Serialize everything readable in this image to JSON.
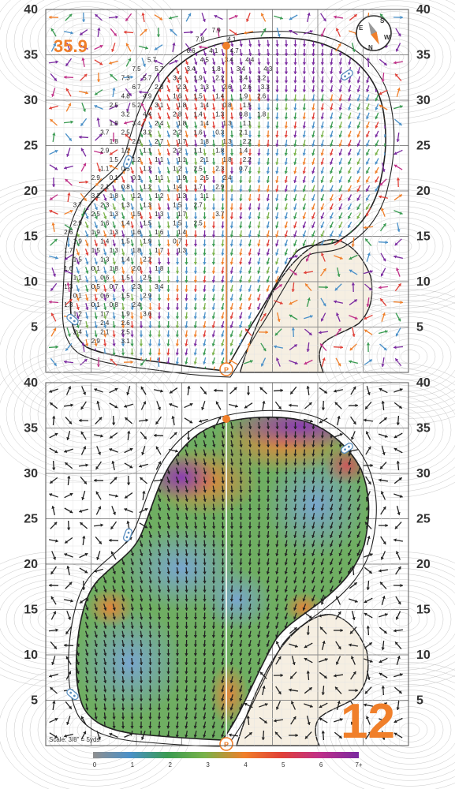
{
  "hole": {
    "number": "12",
    "pin_elevation_label": "35.9",
    "scale_label": "Scale: 3/8\" = 5yds"
  },
  "y_axis": {
    "ticks": [
      "40",
      "35",
      "30",
      "25",
      "20",
      "15",
      "10",
      "5"
    ]
  },
  "compass": {
    "letters": [
      "S",
      "E",
      "W",
      "N"
    ]
  },
  "legend": {
    "ticks": [
      "0",
      "1",
      "2",
      "3",
      "4",
      "5",
      "6",
      "7+"
    ],
    "colors": [
      "#8f8f8f",
      "#4a90c8",
      "#3a9b52",
      "#79b24a",
      "#f07f2a",
      "#e04038",
      "#c03088",
      "#7a2aa0"
    ]
  },
  "colors": {
    "accent": "#f07f2a",
    "grid_line": "#8a8a8a",
    "green_outline": "#222222",
    "sand": "#f6efe2",
    "contour": "#c8c8c8"
  },
  "slope_readings": [
    {
      "x": 18.8,
      "y": 37.5,
      "v": "7.9"
    },
    {
      "x": 17,
      "y": 36.5,
      "v": "7.8"
    },
    {
      "x": 20.5,
      "y": 36.5,
      "v": "4.1"
    },
    {
      "x": 16,
      "y": 35.2,
      "v": "6.6"
    },
    {
      "x": 18.5,
      "y": 35.2,
      "v": "4.1"
    },
    {
      "x": 20.8,
      "y": 35.2,
      "v": "4.7"
    },
    {
      "x": 11.7,
      "y": 34.2,
      "v": "5.7"
    },
    {
      "x": 17.5,
      "y": 34.2,
      "v": "4.5"
    },
    {
      "x": 20.2,
      "y": 34.2,
      "v": "3.4"
    },
    {
      "x": 22.5,
      "y": 34.2,
      "v": "4.4"
    },
    {
      "x": 10,
      "y": 33.2,
      "v": "7.5"
    },
    {
      "x": 12.5,
      "y": 33.2,
      "v": "5.7"
    },
    {
      "x": 16,
      "y": 33.2,
      "v": "3.4"
    },
    {
      "x": 18.8,
      "y": 33.2,
      "v": "1.8"
    },
    {
      "x": 21.5,
      "y": 33.2,
      "v": "3.4"
    },
    {
      "x": 24.5,
      "y": 33.2,
      "v": "4.3"
    },
    {
      "x": 8.8,
      "y": 32.2,
      "v": "7.3"
    },
    {
      "x": 11.2,
      "y": 32.2,
      "v": "5.7"
    },
    {
      "x": 14.5,
      "y": 32.2,
      "v": "3.4"
    },
    {
      "x": 16.8,
      "y": 32.2,
      "v": "1.9"
    },
    {
      "x": 19.2,
      "y": 32.2,
      "v": "2.2"
    },
    {
      "x": 21.8,
      "y": 32.2,
      "v": "3.4"
    },
    {
      "x": 23.8,
      "y": 32.2,
      "v": "3.2"
    },
    {
      "x": 10,
      "y": 31.2,
      "v": "6.7"
    },
    {
      "x": 12.5,
      "y": 31.2,
      "v": "2.3"
    },
    {
      "x": 15,
      "y": 31.2,
      "v": "2.3"
    },
    {
      "x": 17.5,
      "y": 31.2,
      "v": "1.3"
    },
    {
      "x": 20,
      "y": 31.2,
      "v": "2.6"
    },
    {
      "x": 22.2,
      "y": 31.2,
      "v": "2.6"
    },
    {
      "x": 24.2,
      "y": 31.2,
      "v": "3.3"
    },
    {
      "x": 8.8,
      "y": 30.2,
      "v": "4.8"
    },
    {
      "x": 11.2,
      "y": 30.2,
      "v": "4.9"
    },
    {
      "x": 14.5,
      "y": 30.2,
      "v": "1.6"
    },
    {
      "x": 16.8,
      "y": 30.2,
      "v": "1.5"
    },
    {
      "x": 19.2,
      "y": 30.2,
      "v": "1.4"
    },
    {
      "x": 21.8,
      "y": 30.2,
      "v": "1.9"
    },
    {
      "x": 23.8,
      "y": 30.2,
      "v": "2.6"
    },
    {
      "x": 7.5,
      "y": 29.2,
      "v": "2.5"
    },
    {
      "x": 10,
      "y": 29.2,
      "v": "5.2"
    },
    {
      "x": 12.5,
      "y": 29.2,
      "v": "3.1"
    },
    {
      "x": 15,
      "y": 29.2,
      "v": "1.8"
    },
    {
      "x": 17.5,
      "y": 29.2,
      "v": "1.4"
    },
    {
      "x": 20,
      "y": 29.2,
      "v": "0.8"
    },
    {
      "x": 22.2,
      "y": 29.2,
      "v": "1.5"
    },
    {
      "x": 8.8,
      "y": 28.2,
      "v": "3.2"
    },
    {
      "x": 11.2,
      "y": 28.2,
      "v": "4.4"
    },
    {
      "x": 14.5,
      "y": 28.2,
      "v": "2.8"
    },
    {
      "x": 16.8,
      "y": 28.2,
      "v": "1.4"
    },
    {
      "x": 19.2,
      "y": 28.2,
      "v": "1.3"
    },
    {
      "x": 21.8,
      "y": 28.2,
      "v": "0.8"
    },
    {
      "x": 23.8,
      "y": 28.2,
      "v": "1.8"
    },
    {
      "x": 7.5,
      "y": 27.2,
      "v": "1.9"
    },
    {
      "x": 10,
      "y": 27.2,
      "v": "3.4"
    },
    {
      "x": 12.5,
      "y": 27.2,
      "v": "2.4"
    },
    {
      "x": 15,
      "y": 27.2,
      "v": "1.8"
    },
    {
      "x": 17.5,
      "y": 27.2,
      "v": "1.4"
    },
    {
      "x": 20,
      "y": 27.2,
      "v": "1.3"
    },
    {
      "x": 22.2,
      "y": 27.2,
      "v": "1.1"
    },
    {
      "x": 6.5,
      "y": 26.2,
      "v": "3.7"
    },
    {
      "x": 8.8,
      "y": 26.2,
      "v": "2.5"
    },
    {
      "x": 11.2,
      "y": 26.2,
      "v": "3.2"
    },
    {
      "x": 14.5,
      "y": 26.2,
      "v": "2.2"
    },
    {
      "x": 16.8,
      "y": 26.2,
      "v": "1.6"
    },
    {
      "x": 19.2,
      "y": 26.2,
      "v": "0.3"
    },
    {
      "x": 21.8,
      "y": 26.2,
      "v": "2.1"
    },
    {
      "x": 7.5,
      "y": 25.2,
      "v": "1.8"
    },
    {
      "x": 10,
      "y": 25.2,
      "v": "2.6"
    },
    {
      "x": 12.5,
      "y": 25.2,
      "v": "2.7"
    },
    {
      "x": 15,
      "y": 25.2,
      "v": "1.7"
    },
    {
      "x": 17.5,
      "y": 25.2,
      "v": "1.8"
    },
    {
      "x": 20,
      "y": 25.2,
      "v": "1.3"
    },
    {
      "x": 22.2,
      "y": 25.2,
      "v": "2.2"
    },
    {
      "x": 6.5,
      "y": 24.2,
      "v": "2.9"
    },
    {
      "x": 8.8,
      "y": 24.2,
      "v": "1.2"
    },
    {
      "x": 11.2,
      "y": 24.2,
      "v": "1.1"
    },
    {
      "x": 14.5,
      "y": 24.2,
      "v": "2.2"
    },
    {
      "x": 16.8,
      "y": 24.2,
      "v": "1.1"
    },
    {
      "x": 19.2,
      "y": 24.2,
      "v": "1.8"
    },
    {
      "x": 21.8,
      "y": 24.2,
      "v": "1.4"
    },
    {
      "x": 7.5,
      "y": 23.2,
      "v": "1.5"
    },
    {
      "x": 10,
      "y": 23.2,
      "v": "1.2"
    },
    {
      "x": 12.5,
      "y": 23.2,
      "v": "1.1"
    },
    {
      "x": 15,
      "y": 23.2,
      "v": "1.1"
    },
    {
      "x": 17.5,
      "y": 23.2,
      "v": "2.1"
    },
    {
      "x": 20,
      "y": 23.2,
      "v": "1.8"
    },
    {
      "x": 22.2,
      "y": 23.2,
      "v": "2.2"
    },
    {
      "x": 6.5,
      "y": 22.2,
      "v": "1.1"
    },
    {
      "x": 8.8,
      "y": 22.2,
      "v": "0.5"
    },
    {
      "x": 11.2,
      "y": 22.2,
      "v": "1.2"
    },
    {
      "x": 14.5,
      "y": 22.2,
      "v": "1.2"
    },
    {
      "x": 16.8,
      "y": 22.2,
      "v": "2.5"
    },
    {
      "x": 19.2,
      "y": 22.2,
      "v": "2.3"
    },
    {
      "x": 21.8,
      "y": 22.2,
      "v": "0.7"
    },
    {
      "x": 5.5,
      "y": 21.2,
      "v": "2.9"
    },
    {
      "x": 7.5,
      "y": 21.2,
      "v": "0.1"
    },
    {
      "x": 10,
      "y": 21.2,
      "v": "0.1"
    },
    {
      "x": 12.5,
      "y": 21.2,
      "v": "1.1"
    },
    {
      "x": 15,
      "y": 21.2,
      "v": "1.9"
    },
    {
      "x": 17.5,
      "y": 21.2,
      "v": "2.5"
    },
    {
      "x": 20,
      "y": 21.2,
      "v": "2.4"
    },
    {
      "x": 6.5,
      "y": 20.2,
      "v": "2.1"
    },
    {
      "x": 8.8,
      "y": 20.2,
      "v": "0.8"
    },
    {
      "x": 11.2,
      "y": 20.2,
      "v": "1.2"
    },
    {
      "x": 14.5,
      "y": 20.2,
      "v": "1.4"
    },
    {
      "x": 16.8,
      "y": 20.2,
      "v": "1.7"
    },
    {
      "x": 19.2,
      "y": 20.2,
      "v": "2.9"
    },
    {
      "x": 5.5,
      "y": 19.2,
      "v": "3.2"
    },
    {
      "x": 7.5,
      "y": 19.2,
      "v": "1.8"
    },
    {
      "x": 10,
      "y": 19.2,
      "v": "1.2"
    },
    {
      "x": 12.5,
      "y": 19.2,
      "v": "1.2"
    },
    {
      "x": 15,
      "y": 19.2,
      "v": "1.3"
    },
    {
      "x": 17.5,
      "y": 19.2,
      "v": "1.1"
    },
    {
      "x": 3.5,
      "y": 18.2,
      "v": "3.7"
    },
    {
      "x": 6.5,
      "y": 18.2,
      "v": "2.3"
    },
    {
      "x": 8.8,
      "y": 18.2,
      "v": "1.3"
    },
    {
      "x": 11.2,
      "y": 18.2,
      "v": "1.3"
    },
    {
      "x": 14.5,
      "y": 18.2,
      "v": "1.5"
    },
    {
      "x": 16.8,
      "y": 18.2,
      "v": "2.7"
    },
    {
      "x": 5.5,
      "y": 17.2,
      "v": "2.5"
    },
    {
      "x": 7.5,
      "y": 17.2,
      "v": "1.3"
    },
    {
      "x": 10,
      "y": 17.2,
      "v": "1.5"
    },
    {
      "x": 12.5,
      "y": 17.2,
      "v": "1.3"
    },
    {
      "x": 15,
      "y": 17.2,
      "v": "1.7"
    },
    {
      "x": 19.2,
      "y": 17.2,
      "v": "3.7"
    },
    {
      "x": 3.5,
      "y": 16.2,
      "v": "2.9"
    },
    {
      "x": 6.5,
      "y": 16.2,
      "v": "1.6"
    },
    {
      "x": 8.8,
      "y": 16.2,
      "v": "1.4"
    },
    {
      "x": 11.2,
      "y": 16.2,
      "v": "1.5"
    },
    {
      "x": 14.5,
      "y": 16.2,
      "v": "1.5"
    },
    {
      "x": 16.8,
      "y": 16.2,
      "v": "2.5"
    },
    {
      "x": 2.5,
      "y": 15.2,
      "v": "2.6"
    },
    {
      "x": 5.5,
      "y": 15.2,
      "v": "1.9"
    },
    {
      "x": 7.5,
      "y": 15.2,
      "v": "1.3"
    },
    {
      "x": 10,
      "y": 15.2,
      "v": "1.6"
    },
    {
      "x": 12.5,
      "y": 15.2,
      "v": "1.6"
    },
    {
      "x": 15,
      "y": 15.2,
      "v": "1.4"
    },
    {
      "x": 3.5,
      "y": 14.2,
      "v": "1.9"
    },
    {
      "x": 6.5,
      "y": 14.2,
      "v": "1.4"
    },
    {
      "x": 8.8,
      "y": 14.2,
      "v": "1.5"
    },
    {
      "x": 11.2,
      "y": 14.2,
      "v": "1.9"
    },
    {
      "x": 14.5,
      "y": 14.2,
      "v": "0.7"
    },
    {
      "x": 2.5,
      "y": 13.2,
      "v": "1.7"
    },
    {
      "x": 5.5,
      "y": 13.2,
      "v": "1.5"
    },
    {
      "x": 7.5,
      "y": 13.2,
      "v": "1.3"
    },
    {
      "x": 10,
      "y": 13.2,
      "v": "1.8"
    },
    {
      "x": 12.5,
      "y": 13.2,
      "v": "1.7"
    },
    {
      "x": 15,
      "y": 13.2,
      "v": "1.3"
    },
    {
      "x": 3.5,
      "y": 12.2,
      "v": "1.5"
    },
    {
      "x": 6.5,
      "y": 12.2,
      "v": "1.3"
    },
    {
      "x": 8.8,
      "y": 12.2,
      "v": "1.4"
    },
    {
      "x": 11.2,
      "y": 12.2,
      "v": "2.2"
    },
    {
      "x": 2.5,
      "y": 11.2,
      "v": "1.6"
    },
    {
      "x": 5.5,
      "y": 11.2,
      "v": "0.1"
    },
    {
      "x": 7.5,
      "y": 11.2,
      "v": "1.8"
    },
    {
      "x": 10,
      "y": 11.2,
      "v": "2.0"
    },
    {
      "x": 12.5,
      "y": 11.2,
      "v": "1.8"
    },
    {
      "x": 3.5,
      "y": 10.2,
      "v": "1.1"
    },
    {
      "x": 6.5,
      "y": 10.2,
      "v": "0.6"
    },
    {
      "x": 8.8,
      "y": 10.2,
      "v": "1.5"
    },
    {
      "x": 11.2,
      "y": 10.2,
      "v": "2.5"
    },
    {
      "x": 2.5,
      "y": 9.2,
      "v": "1.3"
    },
    {
      "x": 5.5,
      "y": 9.2,
      "v": "0.5"
    },
    {
      "x": 7.5,
      "y": 9.2,
      "v": "0.7"
    },
    {
      "x": 10,
      "y": 9.2,
      "v": "2.3"
    },
    {
      "x": 12.5,
      "y": 9.2,
      "v": "3.4"
    },
    {
      "x": 3.5,
      "y": 8.2,
      "v": "0.1"
    },
    {
      "x": 6.5,
      "y": 8.2,
      "v": "0.6"
    },
    {
      "x": 8.8,
      "y": 8.2,
      "v": "1.5"
    },
    {
      "x": 11.2,
      "y": 8.2,
      "v": "2.9"
    },
    {
      "x": 2.5,
      "y": 7.2,
      "v": "1.3"
    },
    {
      "x": 5.5,
      "y": 7.2,
      "v": "0.1"
    },
    {
      "x": 7.5,
      "y": 7.2,
      "v": "0.8"
    },
    {
      "x": 10,
      "y": 7.2,
      "v": "2.4"
    },
    {
      "x": 3.5,
      "y": 6.2,
      "v": "1.2"
    },
    {
      "x": 6.5,
      "y": 6.2,
      "v": "1.7"
    },
    {
      "x": 8.8,
      "y": 6.2,
      "v": "1.9"
    },
    {
      "x": 11.2,
      "y": 6.2,
      "v": "3.6"
    },
    {
      "x": 3.5,
      "y": 5.2,
      "v": "2.7"
    },
    {
      "x": 6.5,
      "y": 5.2,
      "v": "2.4"
    },
    {
      "x": 8.8,
      "y": 5.2,
      "v": "2.6"
    },
    {
      "x": 3.5,
      "y": 4.2,
      "v": "2.4"
    },
    {
      "x": 6.5,
      "y": 4.2,
      "v": "2.1"
    },
    {
      "x": 8.8,
      "y": 4.2,
      "v": "2.5"
    },
    {
      "x": 5.5,
      "y": 3.2,
      "v": "2.9"
    },
    {
      "x": 8.8,
      "y": 3.2,
      "v": "3.1"
    }
  ]
}
